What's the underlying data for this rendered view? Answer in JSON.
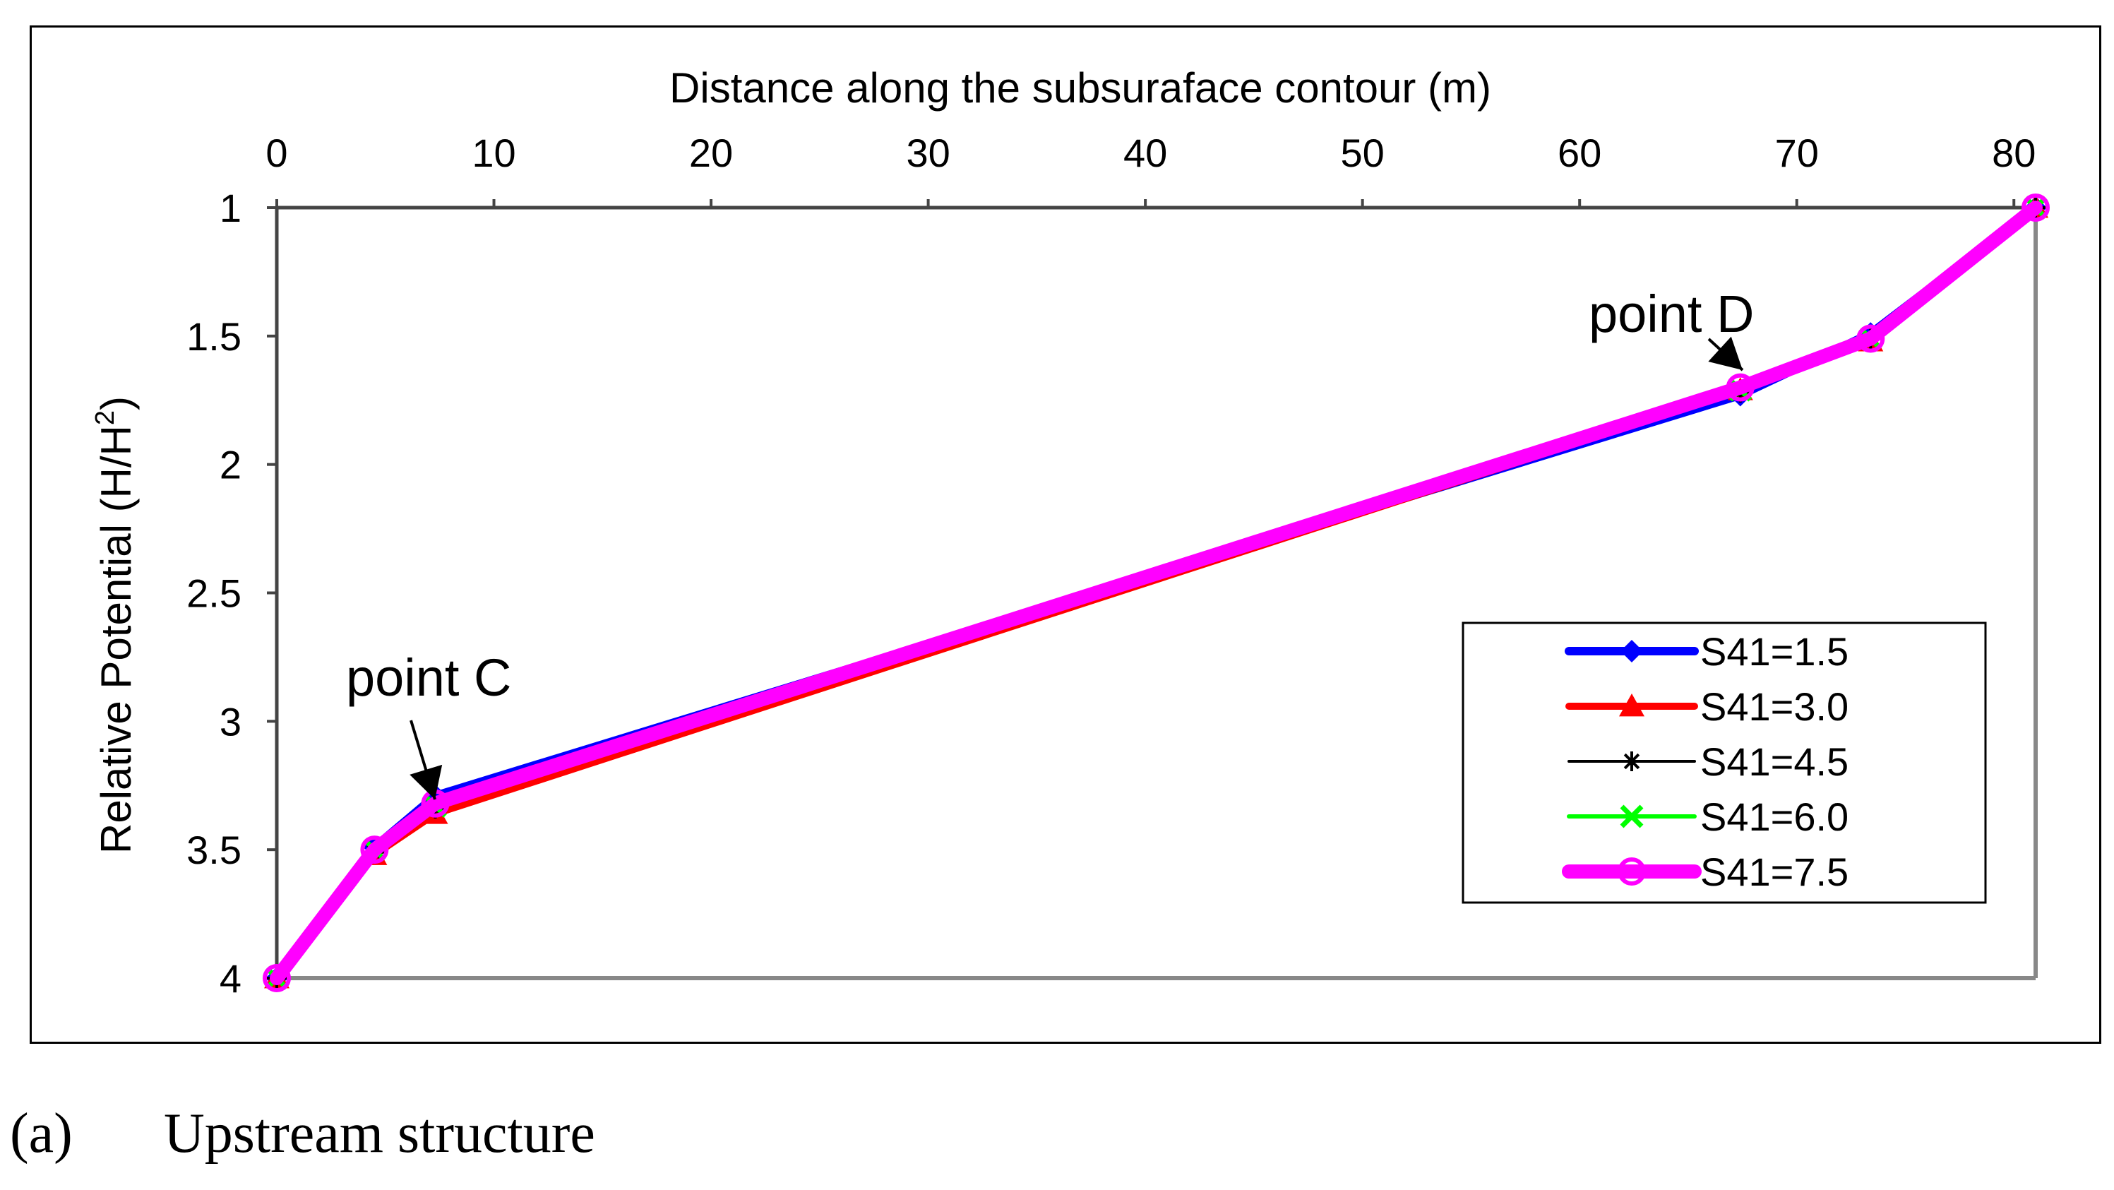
{
  "chart_data": {
    "type": "line",
    "xlabel": "Distance along the subsuraface contour (m)",
    "ylabel_main": "Relative Potential (H/H",
    "ylabel_sup": "2",
    "ylabel_end": ")",
    "xlim": [
      0,
      81
    ],
    "ylim": [
      1,
      4
    ],
    "y_reversed": true,
    "x_axis_position": "top",
    "xticks": [
      0,
      10,
      20,
      30,
      40,
      50,
      60,
      70,
      80
    ],
    "yticks": [
      1,
      1.5,
      2,
      2.5,
      3,
      3.5,
      4
    ],
    "legend_position": "bottom-right",
    "series": [
      {
        "name": "S41=1.5",
        "color": "#0000ff",
        "marker": "diamond",
        "points": [
          [
            0,
            4.0
          ],
          [
            4.5,
            3.49
          ],
          [
            7.3,
            3.29
          ],
          [
            67.4,
            1.73
          ],
          [
            73.4,
            1.49
          ],
          [
            81,
            1.0
          ]
        ]
      },
      {
        "name": "S41=3.0",
        "color": "#ff0000",
        "marker": "triangle",
        "points": [
          [
            0,
            4.0
          ],
          [
            4.5,
            3.52
          ],
          [
            7.3,
            3.36
          ],
          [
            67.4,
            1.71
          ],
          [
            73.4,
            1.52
          ],
          [
            81,
            1.0
          ]
        ]
      },
      {
        "name": "S41=4.5",
        "color": "#000000",
        "marker": "star",
        "points": [
          [
            0,
            4.0
          ],
          [
            4.5,
            3.51
          ],
          [
            7.3,
            3.34
          ],
          [
            67.4,
            1.72
          ],
          [
            73.4,
            1.51
          ],
          [
            81,
            1.0
          ]
        ]
      },
      {
        "name": "S41=6.0",
        "color": "#00ff00",
        "marker": "x",
        "points": [
          [
            0,
            4.0
          ],
          [
            4.5,
            3.5
          ],
          [
            7.3,
            3.33
          ],
          [
            67.4,
            1.71
          ],
          [
            73.4,
            1.51
          ],
          [
            81,
            1.0
          ]
        ]
      },
      {
        "name": "S41=7.5",
        "color": "#ff00ff",
        "marker": "circle",
        "points": [
          [
            0,
            4.0
          ],
          [
            4.5,
            3.5
          ],
          [
            7.3,
            3.32
          ],
          [
            67.4,
            1.7
          ],
          [
            73.4,
            1.51
          ],
          [
            81,
            1.0
          ]
        ]
      }
    ],
    "annotations": [
      {
        "text": "point C",
        "target": [
          7.3,
          3.3
        ]
      },
      {
        "text": "point D",
        "target": [
          67.4,
          1.7
        ]
      }
    ]
  },
  "caption": {
    "label": "(a)",
    "text": "Upstream structure"
  }
}
